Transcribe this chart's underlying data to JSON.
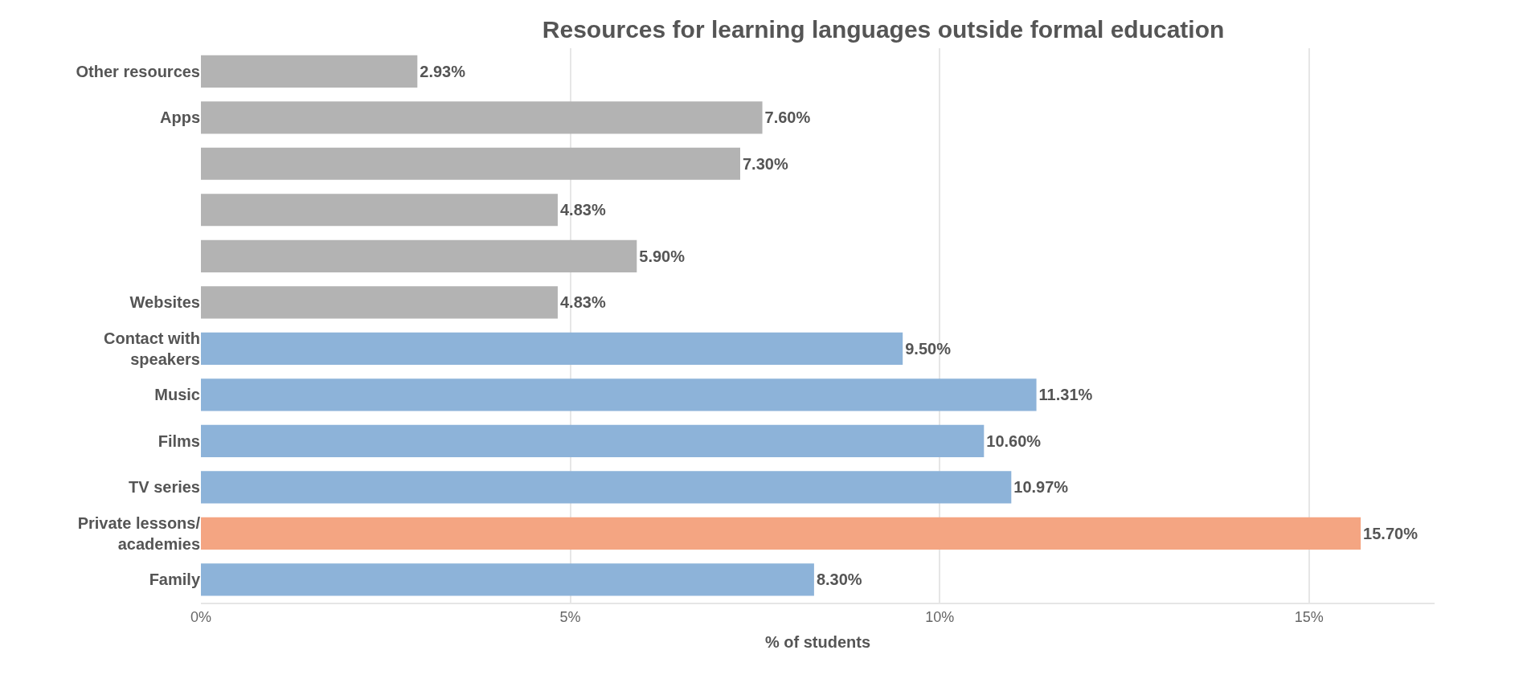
{
  "chart_data": {
    "type": "bar",
    "orientation": "horizontal",
    "title": "Resources for learning languages outside formal education",
    "xlabel": "% of students",
    "categories": [
      "Other resources",
      "Apps",
      null,
      null,
      null,
      "Websites",
      "Contact with speakers",
      "Music",
      "Films",
      "TV series",
      "Private lessons/academies",
      "Family"
    ],
    "values": [
      2.93,
      7.6,
      7.3,
      4.83,
      5.9,
      4.83,
      9.5,
      11.31,
      10.6,
      10.97,
      15.7,
      8.3
    ],
    "value_labels": [
      "2.93%",
      "7.60%",
      "7.30%",
      "4.83%",
      "5.90%",
      "4.83%",
      "9.50%",
      "11.31%",
      "10.60%",
      "10.97%",
      "15.70%",
      "8.30%"
    ],
    "colors": [
      "#b3b3b3",
      "#b3b3b3",
      "#b3b3b3",
      "#b3b3b3",
      "#b3b3b3",
      "#b3b3b3",
      "#8db3d9",
      "#8db3d9",
      "#8db3d9",
      "#8db3d9",
      "#f4a582",
      "#8db3d9"
    ],
    "xlim": [
      0,
      16.7
    ],
    "xticks": [
      {
        "value": 0,
        "label": "0%"
      },
      {
        "value": 5,
        "label": "5%"
      },
      {
        "value": 10,
        "label": "10%"
      },
      {
        "value": 15,
        "label": "15%"
      }
    ],
    "grid": "x"
  }
}
